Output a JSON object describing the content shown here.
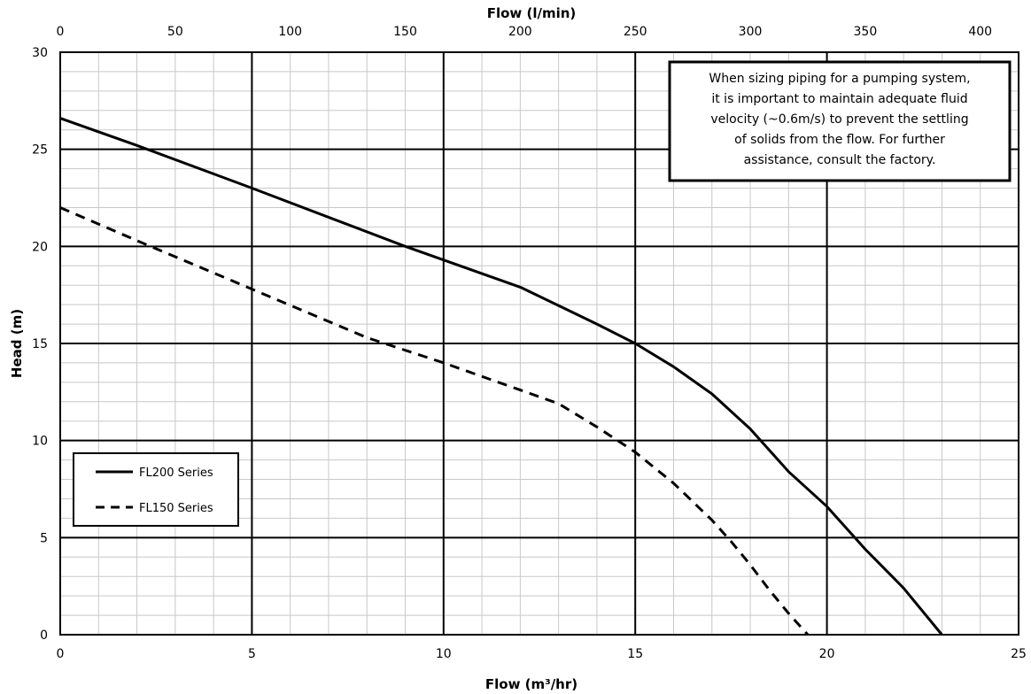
{
  "chart_data": {
    "type": "line",
    "x_axis_bottom": {
      "label": "Flow (m³/hr)",
      "range": [
        0,
        25
      ],
      "ticks": [
        "0",
        "5",
        "10",
        "15",
        "20",
        "25"
      ]
    },
    "x_axis_top": {
      "label": "Flow (l/min)",
      "range": [
        0,
        416.67
      ],
      "ticks": [
        "0",
        "50",
        "100",
        "150",
        "200",
        "250",
        "300",
        "350",
        "400"
      ]
    },
    "y_axis": {
      "label": "Head (m)",
      "range": [
        0,
        30
      ],
      "ticks": [
        "0",
        "5",
        "10",
        "15",
        "20",
        "25",
        "30"
      ]
    },
    "grid": true,
    "legend": {
      "placement": "bottom-left"
    },
    "series": [
      {
        "name": "FL200 Series",
        "style": "solid",
        "x": [
          0,
          2,
          5,
          9,
          10,
          12,
          14,
          15,
          16,
          17,
          18,
          19,
          20,
          21,
          22,
          23
        ],
        "y": [
          26.6,
          25.2,
          23,
          20,
          19.3,
          17.9,
          16,
          15,
          13.8,
          12.4,
          10.6,
          8.4,
          6.6,
          4.4,
          2.4,
          0
        ]
      },
      {
        "name": "FL150 Series",
        "style": "dashed",
        "x": [
          0,
          2,
          5,
          8,
          10,
          12,
          13,
          14,
          15,
          16,
          17,
          17.5,
          18,
          18.5,
          19,
          19.5
        ],
        "y": [
          22,
          20.3,
          17.8,
          15.3,
          14,
          12.6,
          11.9,
          10.7,
          9.4,
          7.8,
          5.9,
          4.8,
          3.6,
          2.3,
          1.1,
          0
        ]
      }
    ],
    "annotation": {
      "lines": [
        "When sizing piping for a pumping system,",
        "it is important to maintain adequate fluid",
        "velocity (~0.6m/s) to prevent the settling",
        "of solids from the flow. For further",
        "assistance, consult the factory."
      ]
    }
  },
  "colors": {
    "line": "#000000",
    "minor_grid": "#c8c8c8",
    "major_grid": "#000000"
  }
}
